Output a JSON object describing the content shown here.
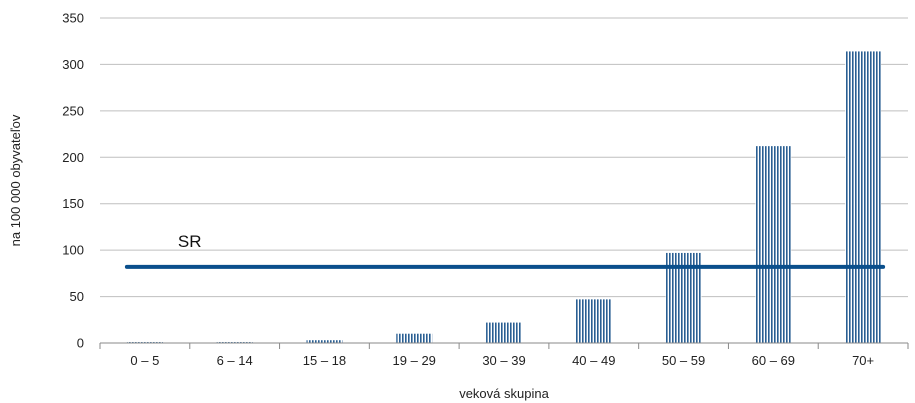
{
  "chart_data": {
    "type": "bar",
    "title": "",
    "xlabel": "veková skupina",
    "ylabel": "na 100 000 obyvateľov",
    "categories": [
      "0 – 5",
      "6 – 14",
      "15 – 18",
      "19 – 29",
      "30 – 39",
      "40 – 49",
      "50 – 59",
      "60 – 69",
      "70+"
    ],
    "values": [
      1,
      1,
      3,
      10,
      22,
      47,
      97,
      212,
      314
    ],
    "ylim": [
      0,
      350
    ],
    "yticks": [
      0,
      50,
      100,
      150,
      200,
      250,
      300,
      350
    ],
    "grid": true,
    "reference_line": {
      "label": "SR",
      "value": 82,
      "color": "#0a4f8c"
    },
    "bar_color": "#2a5f93",
    "bar_pattern": "vertical-stripes"
  }
}
